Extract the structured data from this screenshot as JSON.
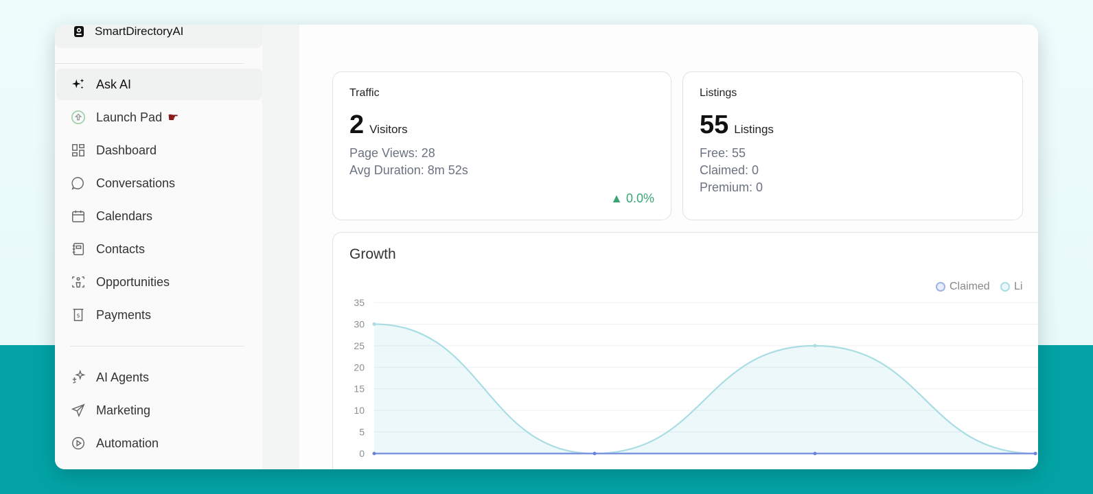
{
  "brand": {
    "name": "SmartDirectoryAI"
  },
  "sidebar": {
    "items": [
      {
        "label": "Ask AI",
        "icon": "sparkles-icon"
      },
      {
        "label": "Launch Pad",
        "icon": "rocket-icon"
      },
      {
        "label": "Dashboard",
        "icon": "grid-icon"
      },
      {
        "label": "Conversations",
        "icon": "chat-bubble-icon"
      },
      {
        "label": "Calendars",
        "icon": "calendar-icon"
      },
      {
        "label": "Contacts",
        "icon": "contact-book-icon"
      },
      {
        "label": "Opportunities",
        "icon": "opportunities-icon"
      },
      {
        "label": "Payments",
        "icon": "dollar-receipt-icon"
      },
      {
        "label": "AI Agents",
        "icon": "ai-sparkle-icon"
      },
      {
        "label": "Marketing",
        "icon": "send-icon"
      },
      {
        "label": "Automation",
        "icon": "play-circle-icon"
      }
    ]
  },
  "traffic": {
    "title": "Traffic",
    "value": "2",
    "unit": "Visitors",
    "page_views": "Page Views: 28",
    "avg_duration": "Avg Duration: 8m 52s",
    "trend": "▲ 0.0%"
  },
  "listings": {
    "title": "Listings",
    "value": "55",
    "unit": "Listings",
    "free": "Free: 55",
    "claimed": "Claimed: 0",
    "premium": "Premium: 0"
  },
  "growth": {
    "title": "Growth",
    "legend_claimed": "Claimed",
    "legend_listings": "Li"
  },
  "colors": {
    "accent_teal": "#03a3a5",
    "listings_line": "#a9dde3",
    "claimed_line": "#7f95e0",
    "trend_up": "#3aa572"
  },
  "chart_data": {
    "type": "line",
    "title": "Growth",
    "ylim": [
      0,
      35
    ],
    "yticks": [
      0,
      5,
      10,
      15,
      20,
      25,
      30,
      35
    ],
    "x": [
      0,
      1,
      2,
      3
    ],
    "series": [
      {
        "name": "Claimed",
        "values": [
          0,
          0,
          0,
          0
        ]
      },
      {
        "name": "Li",
        "values": [
          30,
          0,
          25,
          0
        ]
      }
    ],
    "grid": true,
    "legend": "top-right"
  }
}
